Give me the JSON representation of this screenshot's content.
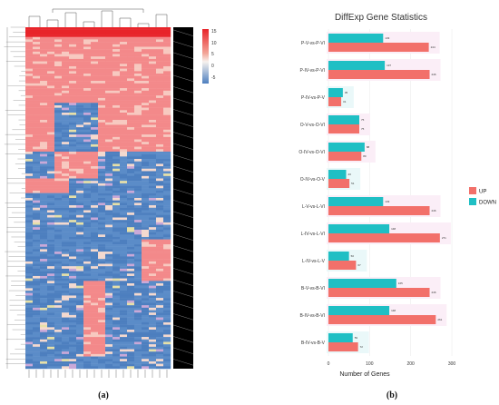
{
  "panels": {
    "a_label": "(a)",
    "b_label": "(b)"
  },
  "heatmap": {
    "legend_ticks": [
      "15",
      "10",
      "5",
      "0",
      "-5"
    ],
    "colors": {
      "high": "#e8242a",
      "mid": "#f7f2ee",
      "low": "#4d7fbf",
      "accent": "#c9a8d8"
    }
  },
  "chart_data": {
    "type": "bar",
    "title": "DiffExp Gene Statistics",
    "xlabel": "Number of Genes",
    "ylabel": "",
    "xlim": [
      0,
      300
    ],
    "xticks": [
      "0",
      "100",
      "200",
      "300"
    ],
    "categories": [
      "P-V-vs-P-VI",
      "P-IV-vs-P-VI",
      "P-IV-vs-P-V",
      "O-V-vs-O-VI",
      "O-IV-vs-O-VI",
      "O-IV-vs-O-V",
      "L-V-vs-L-VI",
      "L-IV-vs-L-VI",
      "L-IV-vs-L-V",
      "B-V-vs-B-VI",
      "B-IV-vs-B-VI",
      "B-IV-vs-B-V"
    ],
    "series": [
      {
        "name": "UP",
        "color": "#f2706a",
        "values": [
          244,
          246,
          31,
          75,
          80,
          51,
          246,
          271,
          67,
          246,
          261,
          72
        ]
      },
      {
        "name": "DOWN",
        "color": "#1fbfc4",
        "values": [
          133,
          137,
          35,
          75,
          88,
          43,
          133,
          148,
          50,
          165,
          148,
          59
        ]
      }
    ],
    "legend_position": "right",
    "grid": true
  }
}
